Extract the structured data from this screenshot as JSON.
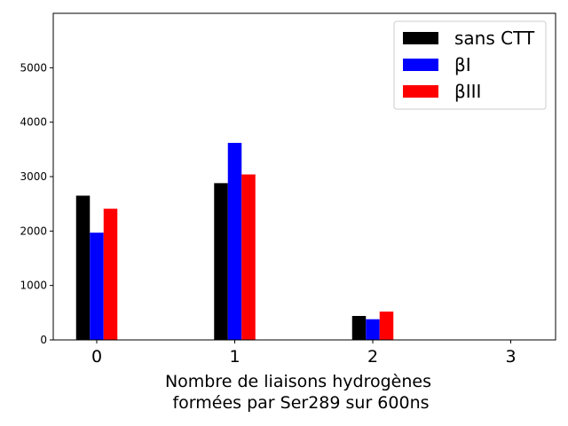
{
  "chart_data": {
    "type": "bar",
    "title": "",
    "xlabel": "Nombre de liaisons hydrogènes\n formées par Ser289 sur 600ns",
    "ylabel": "",
    "categories": [
      "0",
      "1",
      "2",
      "3"
    ],
    "ylim": [
      0,
      6000
    ],
    "yticks": [
      0,
      1000,
      2000,
      3000,
      4000,
      5000
    ],
    "legend_position": "top-right",
    "grid": false,
    "series": [
      {
        "name": "sans CTT",
        "color": "#000000",
        "values": [
          2650,
          2880,
          440,
          0
        ]
      },
      {
        "name": "βI",
        "color": "#0000ff",
        "values": [
          1970,
          3620,
          380,
          0
        ]
      },
      {
        "name": "βIII",
        "color": "#ff0000",
        "values": [
          2410,
          3040,
          520,
          0
        ]
      }
    ]
  }
}
